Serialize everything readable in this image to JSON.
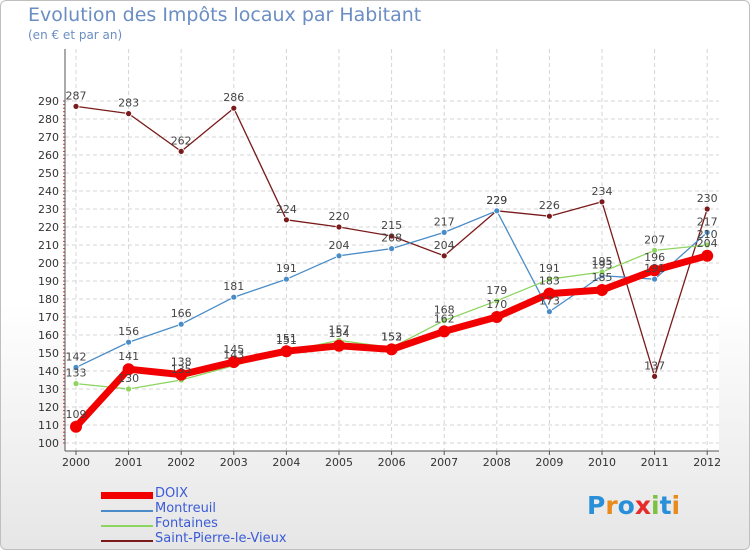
{
  "title": "Evolution des Impôts locaux par Habitant",
  "subtitle": "(en € et par an)",
  "logo": {
    "letters": [
      "P",
      "r",
      "o",
      "x",
      "i",
      "t",
      "i"
    ],
    "colors": [
      "#2a8fd9",
      "#e98a1c",
      "#2a8fd9",
      "#e62b2b",
      "#7cc142",
      "#2a8fd9",
      "#e98a1c"
    ]
  },
  "chart_data": {
    "type": "line",
    "title": "Evolution des Impôts locaux par Habitant",
    "ylabel": "(en € et par an)",
    "xlabel": "",
    "categories": [
      "2000",
      "2001",
      "2002",
      "2003",
      "2004",
      "2005",
      "2006",
      "2007",
      "2008",
      "2009",
      "2010",
      "2011",
      "2012"
    ],
    "ylim": [
      100,
      290
    ],
    "yticks": [
      100,
      110,
      120,
      130,
      140,
      150,
      160,
      170,
      180,
      190,
      200,
      210,
      220,
      230,
      240,
      250,
      260,
      270,
      280,
      290
    ],
    "grid": true,
    "legend_position": "bottom-left",
    "series": [
      {
        "name": "Saint-Pierre-le-Vieux",
        "color": "#7a1a1a",
        "values": [
          287,
          283,
          262,
          286,
          224,
          220,
          215,
          204,
          229,
          226,
          234,
          137,
          230
        ]
      },
      {
        "name": "Montreuil",
        "color": "#4a8cc8",
        "values": [
          142,
          156,
          166,
          181,
          191,
          204,
          208,
          217,
          229,
          173,
          193,
          191,
          217
        ]
      },
      {
        "name": "Fontaines",
        "color": "#8ed461",
        "values": [
          133,
          130,
          135,
          143,
          151,
          157,
          153,
          168,
          179,
          191,
          195,
          207,
          210
        ]
      },
      {
        "name": "DOIX",
        "color": "#f20000",
        "values": [
          109,
          141,
          138,
          145,
          151,
          154,
          152,
          162,
          170,
          183,
          185,
          196,
          204
        ]
      }
    ]
  }
}
